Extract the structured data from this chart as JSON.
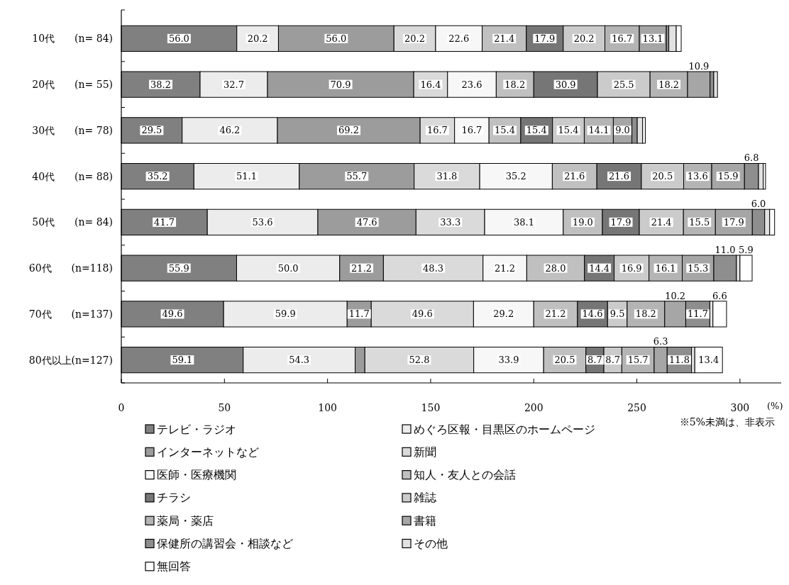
{
  "chart_data": {
    "type": "bar",
    "orientation": "horizontal",
    "stacked": true,
    "categories": [
      "10代　　(n= 84)",
      "20代　　(n= 55)",
      "30代　　(n= 78)",
      "40代　　(n= 88)",
      "50代　　(n= 84)",
      "60代　　(n=118)",
      "70代　　(n=137)",
      "80代以上(n=127)"
    ],
    "series": [
      {
        "name": "テレビ・ラジオ",
        "color": "#808080",
        "values": [
          56.0,
          38.2,
          29.5,
          35.2,
          41.7,
          55.9,
          49.6,
          59.1
        ],
        "value_labels": [
          "56.0",
          "38.2",
          "29.5",
          "35.2",
          "41.7",
          "55.9",
          "49.6",
          "59.1"
        ]
      },
      {
        "name": "めぐろ区報・目黒区のホームページ",
        "color": "#ececec",
        "values": [
          20.2,
          32.7,
          46.2,
          51.1,
          53.6,
          50.0,
          59.9,
          54.3
        ],
        "value_labels": [
          "20.2",
          "32.7",
          "46.2",
          "51.1",
          "53.6",
          "50.0",
          "59.9",
          "54.3"
        ]
      },
      {
        "name": "インターネットなど",
        "color": "#9c9c9c",
        "values": [
          56.0,
          70.9,
          69.2,
          55.7,
          47.6,
          21.2,
          11.7,
          4.7
        ],
        "value_labels": [
          "56.0",
          "70.9",
          "69.2",
          "55.7",
          "47.6",
          "21.2",
          "11.7",
          null
        ]
      },
      {
        "name": "新聞",
        "color": "#dadada",
        "values": [
          20.2,
          16.4,
          16.7,
          31.8,
          33.3,
          48.3,
          49.6,
          52.8
        ],
        "value_labels": [
          "20.2",
          "16.4",
          "16.7",
          "31.8",
          "33.3",
          "48.3",
          "49.6",
          "52.8"
        ]
      },
      {
        "name": "医師・医療機関",
        "color": "#f7f7f7",
        "values": [
          22.6,
          23.6,
          16.7,
          35.2,
          38.1,
          21.2,
          29.2,
          33.9
        ],
        "value_labels": [
          "22.6",
          "23.6",
          "16.7",
          "35.2",
          "38.1",
          "21.2",
          "29.2",
          "33.9"
        ]
      },
      {
        "name": "知人・友人との会話",
        "color": "#c0c0c0",
        "values": [
          21.4,
          18.2,
          15.4,
          21.6,
          19.0,
          28.0,
          21.2,
          20.5
        ],
        "value_labels": [
          "21.4",
          "18.2",
          "15.4",
          "21.6",
          "19.0",
          "28.0",
          "21.2",
          "20.5"
        ]
      },
      {
        "name": "チラシ",
        "color": "#767676",
        "values": [
          17.9,
          30.9,
          15.4,
          21.6,
          17.9,
          14.4,
          14.6,
          8.7
        ],
        "value_labels": [
          "17.9",
          "30.9",
          "15.4",
          "21.6",
          "17.9",
          "14.4",
          "14.6",
          "8.7"
        ]
      },
      {
        "name": "雑誌",
        "color": "#cbcbcb",
        "values": [
          20.2,
          25.5,
          15.4,
          20.5,
          21.4,
          16.9,
          9.5,
          8.7
        ],
        "value_labels": [
          "20.2",
          "25.5",
          "15.4",
          "20.5",
          "21.4",
          "16.9",
          "9.5",
          "8.7"
        ]
      },
      {
        "name": "薬局・薬店",
        "color": "#b4b4b4",
        "values": [
          16.7,
          18.2,
          14.1,
          13.6,
          15.5,
          16.1,
          18.2,
          15.7
        ],
        "value_labels": [
          "16.7",
          "18.2",
          "14.1",
          "13.6",
          "15.5",
          "16.1",
          "18.2",
          "15.7"
        ]
      },
      {
        "name": "書籍",
        "color": "#a6a6a6",
        "values": [
          13.1,
          10.9,
          9.0,
          15.9,
          17.9,
          15.3,
          10.2,
          6.3
        ],
        "value_labels": [
          "13.1",
          "10.9",
          "9.0",
          "15.9",
          "17.9",
          "15.3",
          "10.2",
          "6.3"
        ]
      },
      {
        "name": "保健所の講習会・相談など",
        "color": "#8e8e8e",
        "values": [
          1.2,
          1.8,
          2.6,
          6.8,
          6.0,
          11.0,
          11.7,
          11.8
        ],
        "value_labels": [
          null,
          null,
          null,
          "6.8",
          "6.0",
          "11.0",
          "11.7",
          "11.8"
        ]
      },
      {
        "name": "その他",
        "color": "#e2e2e2",
        "values": [
          3.6,
          1.8,
          2.6,
          2.3,
          2.4,
          1.7,
          1.5,
          1.6
        ],
        "value_labels": [
          null,
          null,
          null,
          null,
          null,
          null,
          null,
          null
        ]
      },
      {
        "name": "無回答",
        "color": "#ffffff",
        "values": [
          2.4,
          0,
          1.3,
          1.1,
          2.4,
          5.9,
          6.6,
          13.4
        ],
        "value_labels": [
          null,
          null,
          null,
          null,
          null,
          "5.9",
          "6.6",
          "13.4"
        ]
      }
    ],
    "xlim": [
      0,
      320
    ],
    "xticks": [
      0,
      50,
      100,
      150,
      200,
      250,
      300
    ],
    "xlabel": "(%)",
    "annotations": [
      "※5%未満は、非表示"
    ],
    "legend": "bottom"
  }
}
